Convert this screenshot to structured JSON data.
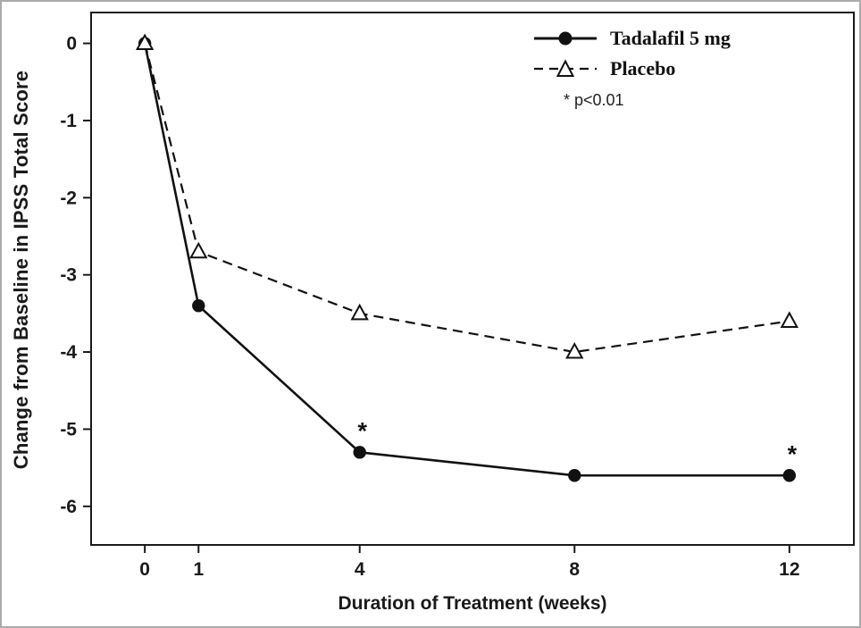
{
  "figure": {
    "border_color": "#ababab",
    "background": "#ffffff"
  },
  "chart_data": {
    "type": "line",
    "title": "",
    "xlabel": "Duration of Treatment (weeks)",
    "ylabel": "Change from Baseline in IPSS Total Score",
    "x": [
      0,
      1,
      4,
      8,
      12
    ],
    "x_ticks": [
      0,
      1,
      4,
      8,
      12
    ],
    "y_ticks": [
      0,
      -1,
      -2,
      -3,
      -4,
      -5,
      -6
    ],
    "xlim": [
      -1,
      13.2
    ],
    "ylim": [
      -6.5,
      0.4
    ],
    "grid": false,
    "legend_position": "top-right",
    "line_color": "#111111",
    "series": [
      {
        "name": "Tadalafil 5 mg",
        "marker": "filled-circle",
        "line": "solid",
        "values": [
          0,
          -3.4,
          -5.3,
          -5.6,
          -5.6
        ],
        "significant": [
          false,
          false,
          true,
          false,
          true
        ]
      },
      {
        "name": "Placebo",
        "marker": "open-triangle",
        "line": "dashed",
        "values": [
          0,
          -2.7,
          -3.5,
          -4.0,
          -3.6
        ],
        "significant": [
          false,
          false,
          false,
          false,
          false
        ]
      }
    ],
    "significance_marker": "*",
    "annotations": [
      {
        "text": "* p<0.01"
      }
    ]
  }
}
